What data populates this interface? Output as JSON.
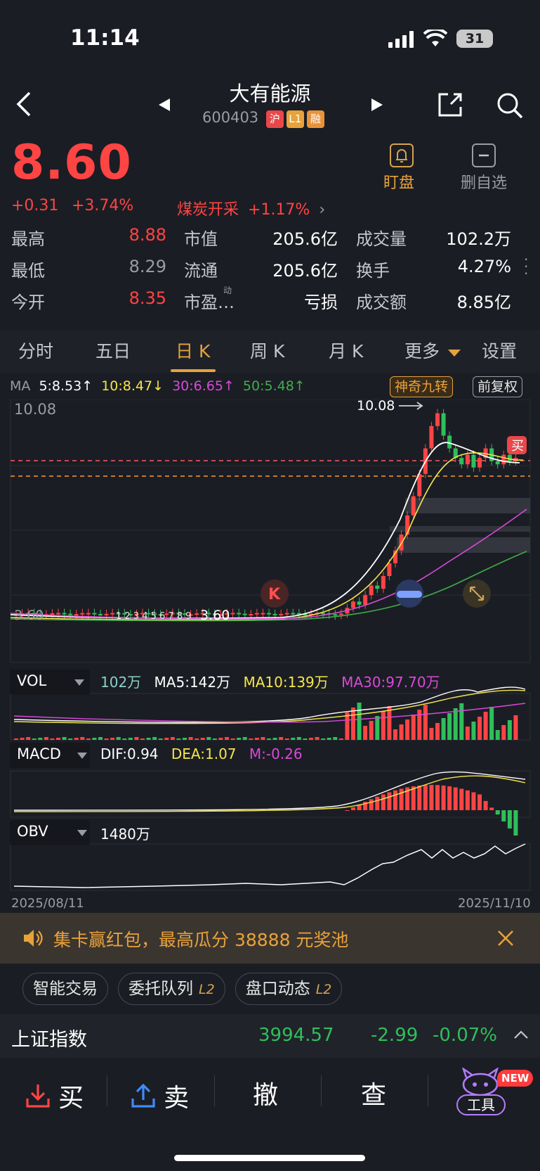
{
  "status": {
    "time": "11:14",
    "battery": "31"
  },
  "header": {
    "title": "大有能源",
    "code": "600403",
    "tags": [
      "沪",
      "L1",
      "融"
    ]
  },
  "actions": {
    "watch": "盯盘",
    "remove": "删自选"
  },
  "quote": {
    "price": "8.60",
    "change": "+0.31",
    "change_pct": "+3.74%",
    "sector": "煤炭开采",
    "sector_pct": "+1.17%"
  },
  "stats": {
    "high_label": "最高",
    "high": "8.88",
    "low_label": "最低",
    "low": "8.29",
    "open_label": "今开",
    "open": "8.35",
    "mcap_label": "市值",
    "mcap": "205.6亿",
    "float_label": "流通",
    "float": "205.6亿",
    "pe_label": "市盈…",
    "pe_sup": "动",
    "pe": "亏损",
    "vol_label": "成交量",
    "vol": "102.2万",
    "turn_label": "换手",
    "turn": "4.27%",
    "amt_label": "成交额",
    "amt": "8.85亿"
  },
  "tabs": [
    "分时",
    "五日",
    "日 K",
    "周 K",
    "月 K",
    "更多",
    "设置"
  ],
  "ma_legend": {
    "label": "MA",
    "ma5": "5:8.53↑",
    "ma10": "10:8.47↓",
    "ma30": "30:6.65↑",
    "ma50": "50:5.48↑"
  },
  "chart_buttons": {
    "magic9": "神奇九转",
    "adjust": "前复权"
  },
  "kline": {
    "high_label": "10.08",
    "peak_label": "10.08",
    "low_label": "3.60",
    "left_label": "3.60",
    "buy_badge": "买",
    "k_badge": "K"
  },
  "vol_panel": {
    "name": "VOL",
    "value": "102万",
    "ma5": "MA5:142万",
    "ma10": "MA10:139万",
    "ma30": "MA30:97.70万"
  },
  "macd_panel": {
    "name": "MACD",
    "dif": "DIF:0.94",
    "dea": "DEA:1.07",
    "m": "M:-0.26"
  },
  "obv_panel": {
    "name": "OBV",
    "value": "1480万"
  },
  "dates": {
    "start": "2025/08/11",
    "end": "2025/11/10"
  },
  "banner": {
    "text": "集卡赢红包，最高瓜分 38888 元奖池"
  },
  "tools": [
    {
      "label": "智能交易",
      "l2": ""
    },
    {
      "label": "委托队列",
      "l2": "L2"
    },
    {
      "label": "盘口动态",
      "l2": "L2"
    }
  ],
  "index": {
    "name": "上证指数",
    "value": "3994.57",
    "change": "-2.99",
    "pct": "-0.07%"
  },
  "bottom": {
    "buy": "买",
    "sell": "卖",
    "cancel": "撤",
    "query": "查",
    "tools": "工具",
    "new": "NEW"
  },
  "colors": {
    "up": "#ff4444",
    "down": "#2fbf5a",
    "bg": "#1b1d24",
    "ma5": "#ffffff",
    "ma10": "#f5e64a",
    "ma30": "#d84ad8",
    "ma50": "#3fae4a",
    "accent": "#e8a23a"
  },
  "chart_data": {
    "type": "candlestick",
    "x_start": "2025/08/11",
    "x_end": "2025/11/10",
    "price_high": 10.08,
    "price_low": 3.6,
    "last": 8.6,
    "ma": {
      "ma5": 8.53,
      "ma10": 8.47,
      "ma30": 6.65,
      "ma50": 5.48
    },
    "volume": {
      "last": "102万",
      "ma5": "142万",
      "ma10": "139万",
      "ma30": "97.70万"
    },
    "macd": {
      "dif": 0.94,
      "dea": 1.07,
      "m": -0.26
    },
    "obv": "1480万"
  }
}
